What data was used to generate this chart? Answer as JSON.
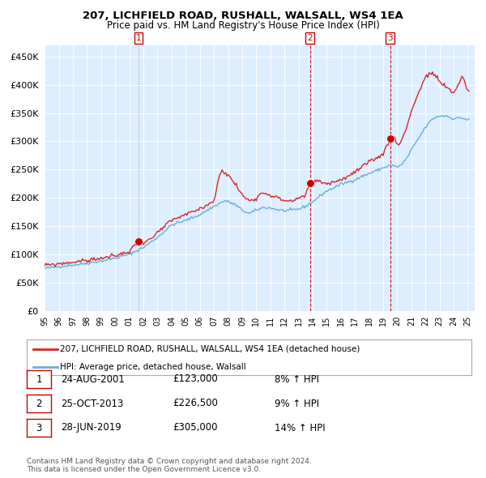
{
  "title": "207, LICHFIELD ROAD, RUSHALL, WALSALL, WS4 1EA",
  "subtitle": "Price paid vs. HM Land Registry's House Price Index (HPI)",
  "yticks": [
    0,
    50000,
    100000,
    150000,
    200000,
    250000,
    300000,
    350000,
    400000,
    450000
  ],
  "ytick_labels": [
    "£0",
    "£50K",
    "£100K",
    "£150K",
    "£200K",
    "£250K",
    "£300K",
    "£350K",
    "£400K",
    "£450K"
  ],
  "xmin_year": 1995.0,
  "xmax_year": 2025.5,
  "sale_dates": [
    2001.646,
    2013.815,
    2019.496
  ],
  "sale_prices": [
    123000,
    226500,
    305000
  ],
  "sale_labels": [
    "1",
    "2",
    "3"
  ],
  "hpi_line_color": "#6baed6",
  "price_line_color": "#d62728",
  "sale_marker_color": "#cc0000",
  "vline_colors": [
    "#999999",
    "#cc0000",
    "#cc0000"
  ],
  "chart_bg_color": "#ddeeff",
  "background_color": "#ffffff",
  "grid_color": "#ffffff",
  "legend_label_price": "207, LICHFIELD ROAD, RUSHALL, WALSALL, WS4 1EA (detached house)",
  "legend_label_hpi": "HPI: Average price, detached house, Walsall",
  "table_entries": [
    {
      "num": "1",
      "date": "24-AUG-2001",
      "price": "£123,000",
      "hpi": "8% ↑ HPI"
    },
    {
      "num": "2",
      "date": "25-OCT-2013",
      "price": "£226,500",
      "hpi": "9% ↑ HPI"
    },
    {
      "num": "3",
      "date": "28-JUN-2019",
      "price": "£305,000",
      "hpi": "14% ↑ HPI"
    }
  ],
  "footer1": "Contains HM Land Registry data © Crown copyright and database right 2024.",
  "footer2": "This data is licensed under the Open Government Licence v3.0.",
  "xtick_years": [
    1995,
    1996,
    1997,
    1998,
    1999,
    2000,
    2001,
    2002,
    2003,
    2004,
    2005,
    2006,
    2007,
    2008,
    2009,
    2010,
    2011,
    2012,
    2013,
    2014,
    2015,
    2016,
    2017,
    2018,
    2019,
    2020,
    2021,
    2022,
    2023,
    2024,
    2025
  ],
  "hpi_anchors": {
    "1995.0": 75000,
    "1996.0": 78000,
    "1997.0": 81000,
    "1998.0": 84000,
    "1999.0": 88000,
    "2000.0": 93000,
    "2001.0": 100000,
    "2002.0": 112000,
    "2003.0": 130000,
    "2004.0": 152000,
    "2005.0": 160000,
    "2006.0": 170000,
    "2007.0": 185000,
    "2007.8": 195000,
    "2008.5": 188000,
    "2009.0": 178000,
    "2009.5": 172000,
    "2010.0": 178000,
    "2010.5": 183000,
    "2011.0": 182000,
    "2011.5": 179000,
    "2012.0": 177000,
    "2012.5": 178000,
    "2013.0": 180000,
    "2013.5": 185000,
    "2014.0": 193000,
    "2014.5": 203000,
    "2015.0": 212000,
    "2015.5": 218000,
    "2016.0": 224000,
    "2016.5": 228000,
    "2017.0": 232000,
    "2017.5": 238000,
    "2018.0": 243000,
    "2018.5": 248000,
    "2019.0": 253000,
    "2019.5": 258000,
    "2020.0": 255000,
    "2020.3": 258000,
    "2020.8": 275000,
    "2021.0": 285000,
    "2021.5": 305000,
    "2022.0": 325000,
    "2022.5": 340000,
    "2023.0": 345000,
    "2023.5": 345000,
    "2024.0": 340000,
    "2024.5": 342000,
    "2025.0": 338000
  },
  "price_anchors": {
    "1995.0": 80000,
    "1996.0": 83000,
    "1997.0": 86000,
    "1998.0": 89000,
    "1999.0": 93000,
    "2000.0": 97000,
    "2001.0": 105000,
    "2001.646": 123000,
    "2002.0": 122000,
    "2002.5": 126000,
    "2003.0": 138000,
    "2004.0": 160000,
    "2005.0": 170000,
    "2006.0": 180000,
    "2007.0": 195000,
    "2007.5": 250000,
    "2008.0": 240000,
    "2008.5": 225000,
    "2009.0": 205000,
    "2009.5": 195000,
    "2010.0": 200000,
    "2010.5": 210000,
    "2011.0": 205000,
    "2011.5": 200000,
    "2012.0": 195000,
    "2012.5": 195000,
    "2013.0": 198000,
    "2013.5": 205000,
    "2013.815": 226500,
    "2014.0": 228000,
    "2014.5": 230000,
    "2015.0": 225000,
    "2015.5": 228000,
    "2016.0": 232000,
    "2016.5": 238000,
    "2017.0": 245000,
    "2017.5": 255000,
    "2018.0": 262000,
    "2018.5": 270000,
    "2019.0": 278000,
    "2019.496": 305000,
    "2019.8": 308000,
    "2020.0": 295000,
    "2020.3": 300000,
    "2020.8": 335000,
    "2021.0": 355000,
    "2021.5": 385000,
    "2022.0": 415000,
    "2022.5": 420000,
    "2022.8": 415000,
    "2023.0": 405000,
    "2023.5": 395000,
    "2024.0": 385000,
    "2024.3": 400000,
    "2024.6": 415000,
    "2024.8": 405000,
    "2025.0": 390000
  }
}
